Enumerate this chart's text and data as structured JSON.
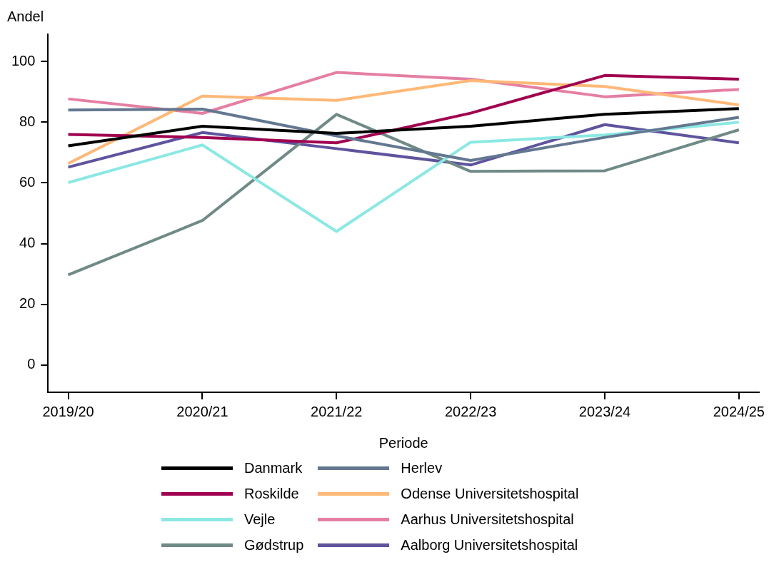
{
  "chart_data": {
    "type": "line",
    "xlabel": "Periode",
    "ylabel": "Andel",
    "categories": [
      "2019/20",
      "2020/21",
      "2021/22",
      "2022/23",
      "2023/24",
      "2024/25"
    ],
    "ylim": [
      -9,
      109
    ],
    "yticks": [
      0,
      20,
      40,
      60,
      80,
      100
    ],
    "grid": false,
    "legend": "bottom",
    "marker": "none",
    "line_style": "solid",
    "series": [
      {
        "name": "Danmark",
        "color": "#000000",
        "values": [
          72.2,
          78.7,
          76.3,
          78.7,
          82.6,
          84.5
        ]
      },
      {
        "name": "Herlev",
        "color": "#637890",
        "values": [
          84,
          84.3,
          75.5,
          67.4,
          75,
          81.6
        ]
      },
      {
        "name": "Roskilde",
        "color": "#a0004f",
        "values": [
          76,
          75,
          73.2,
          83,
          95.4,
          94.2
        ]
      },
      {
        "name": "Odense Universitetshospital",
        "color": "#ffb877",
        "values": [
          66.4,
          88.6,
          87.2,
          93.7,
          91.8,
          85.7
        ]
      },
      {
        "name": "Vejle",
        "color": "#8ce8e3",
        "values": [
          60.1,
          72.5,
          44,
          73.4,
          75.8,
          80
        ]
      },
      {
        "name": "Aarhus Universitetshospital",
        "color": "#e57fa2",
        "values": [
          87.7,
          82.9,
          96.4,
          94.2,
          88.4,
          90.8
        ]
      },
      {
        "name": "Gødstrup",
        "color": "#6f8a87",
        "values": [
          29.7,
          47.6,
          82.6,
          63.8,
          64,
          77.5
        ]
      },
      {
        "name": "Aalborg Universitetshospital",
        "color": "#5e549e",
        "values": [
          65.2,
          76.6,
          71.3,
          65.9,
          79.2,
          73.2
        ]
      }
    ]
  }
}
